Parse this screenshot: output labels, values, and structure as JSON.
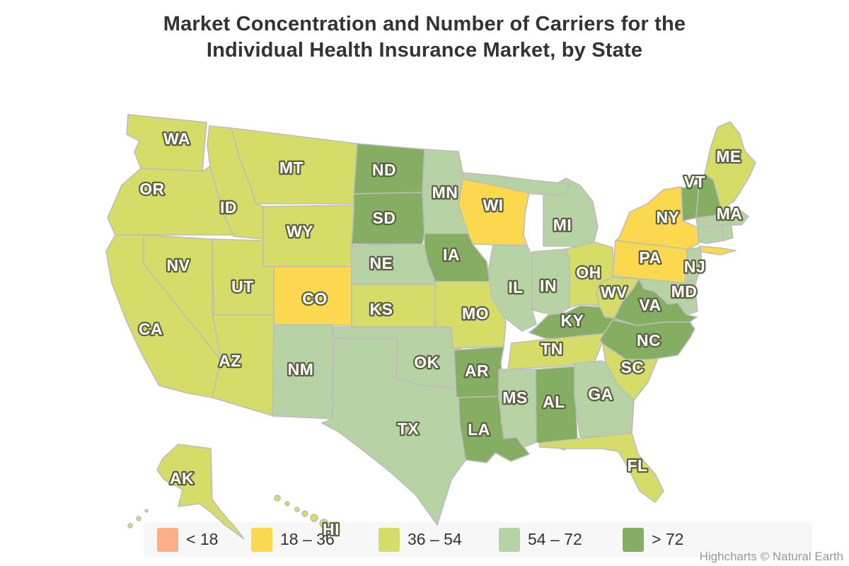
{
  "title": {
    "line1": "Market Concentration and Number of Carriers for the",
    "line2": "Individual Health Insurance Market, by State"
  },
  "credit": "Highcharts © Natural Earth",
  "legend": {
    "classes": [
      {
        "label": "< 18",
        "color": "#FCAE87"
      },
      {
        "label": "18 – 36",
        "color": "#FBD84E"
      },
      {
        "label": "36 – 54",
        "color": "#D5DC68"
      },
      {
        "label": "54 – 72",
        "color": "#B7D2A5"
      },
      {
        "label": "> 72",
        "color": "#85AE63"
      }
    ]
  },
  "chart_data": {
    "type": "heatmap",
    "subtype": "choropleth-us-map",
    "title": "Market Concentration and Number of Carriers for the Individual Health Insurance Market, by State",
    "region": "United States (AK and HI shown as insets)",
    "legend_position": "bottom",
    "border_color": "#bdbdbd",
    "classes": [
      "< 18",
      "18 – 36",
      "36 – 54",
      "54 – 72",
      "> 72"
    ],
    "states": [
      {
        "code": "WA",
        "value_class": "36 – 54",
        "label_shown": true
      },
      {
        "code": "OR",
        "value_class": "36 – 54",
        "label_shown": true
      },
      {
        "code": "CA",
        "value_class": "36 – 54",
        "label_shown": true
      },
      {
        "code": "NV",
        "value_class": "36 – 54",
        "label_shown": true
      },
      {
        "code": "ID",
        "value_class": "36 – 54",
        "label_shown": true
      },
      {
        "code": "MT",
        "value_class": "36 – 54",
        "label_shown": true
      },
      {
        "code": "WY",
        "value_class": "36 – 54",
        "label_shown": true
      },
      {
        "code": "UT",
        "value_class": "36 – 54",
        "label_shown": true
      },
      {
        "code": "AZ",
        "value_class": "36 – 54",
        "label_shown": true
      },
      {
        "code": "CO",
        "value_class": "18 – 36",
        "label_shown": true
      },
      {
        "code": "NM",
        "value_class": "54 – 72",
        "label_shown": true
      },
      {
        "code": "ND",
        "value_class": "> 72",
        "label_shown": true
      },
      {
        "code": "SD",
        "value_class": "> 72",
        "label_shown": true
      },
      {
        "code": "NE",
        "value_class": "54 – 72",
        "label_shown": true
      },
      {
        "code": "KS",
        "value_class": "36 – 54",
        "label_shown": true
      },
      {
        "code": "OK",
        "value_class": "54 – 72",
        "label_shown": true
      },
      {
        "code": "TX",
        "value_class": "54 – 72",
        "label_shown": true
      },
      {
        "code": "MN",
        "value_class": "54 – 72",
        "label_shown": true
      },
      {
        "code": "IA",
        "value_class": "> 72",
        "label_shown": true
      },
      {
        "code": "MO",
        "value_class": "36 – 54",
        "label_shown": true
      },
      {
        "code": "AR",
        "value_class": "> 72",
        "label_shown": true
      },
      {
        "code": "LA",
        "value_class": "> 72",
        "label_shown": true
      },
      {
        "code": "WI",
        "value_class": "18 – 36",
        "label_shown": true
      },
      {
        "code": "IL",
        "value_class": "54 – 72",
        "label_shown": true
      },
      {
        "code": "IN",
        "value_class": "54 – 72",
        "label_shown": true
      },
      {
        "code": "MI",
        "value_class": "54 – 72",
        "label_shown": true
      },
      {
        "code": "OH",
        "value_class": "36 – 54",
        "label_shown": true
      },
      {
        "code": "KY",
        "value_class": "> 72",
        "label_shown": true
      },
      {
        "code": "TN",
        "value_class": "36 – 54",
        "label_shown": true
      },
      {
        "code": "MS",
        "value_class": "54 – 72",
        "label_shown": true
      },
      {
        "code": "AL",
        "value_class": "> 72",
        "label_shown": true
      },
      {
        "code": "GA",
        "value_class": "54 – 72",
        "label_shown": true
      },
      {
        "code": "FL",
        "value_class": "36 – 54",
        "label_shown": true
      },
      {
        "code": "SC",
        "value_class": "36 – 54",
        "label_shown": true
      },
      {
        "code": "NC",
        "value_class": "> 72",
        "label_shown": true
      },
      {
        "code": "VA",
        "value_class": "> 72",
        "label_shown": true
      },
      {
        "code": "WV",
        "value_class": "36 – 54",
        "label_shown": true
      },
      {
        "code": "PA",
        "value_class": "18 – 36",
        "label_shown": true
      },
      {
        "code": "NY",
        "value_class": "18 – 36",
        "label_shown": true
      },
      {
        "code": "NJ",
        "value_class": "54 – 72",
        "label_shown": true
      },
      {
        "code": "MD",
        "value_class": "54 – 72",
        "label_shown": true
      },
      {
        "code": "DE",
        "value_class": "54 – 72",
        "label_shown": false
      },
      {
        "code": "VT",
        "value_class": "> 72",
        "label_shown": true
      },
      {
        "code": "NH",
        "value_class": "> 72",
        "label_shown": false
      },
      {
        "code": "MA",
        "value_class": "54 – 72",
        "label_shown": true
      },
      {
        "code": "CT",
        "value_class": "54 – 72",
        "label_shown": false
      },
      {
        "code": "RI",
        "value_class": "54 – 72",
        "label_shown": false
      },
      {
        "code": "ME",
        "value_class": "36 – 54",
        "label_shown": true
      },
      {
        "code": "AK",
        "value_class": "36 – 54",
        "label_shown": true
      },
      {
        "code": "HI",
        "value_class": "36 – 54",
        "label_shown": true
      }
    ]
  }
}
